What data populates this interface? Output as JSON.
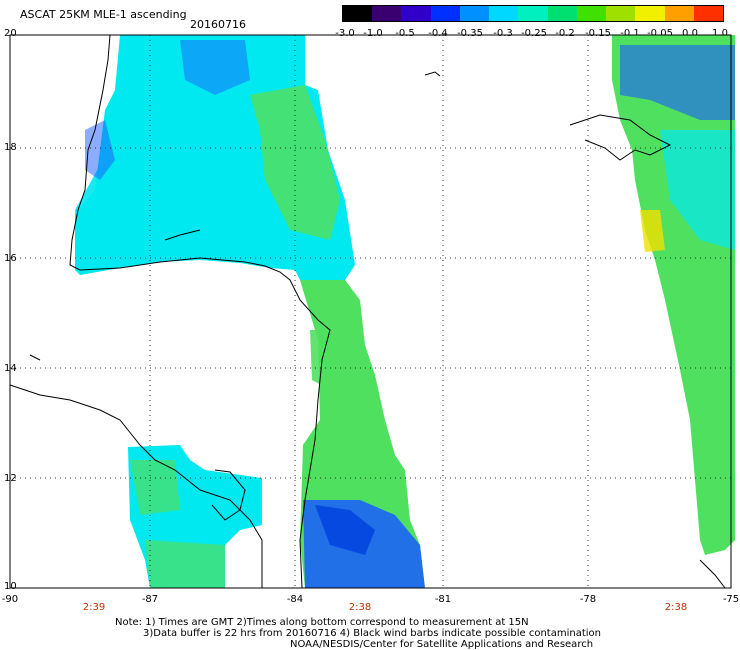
{
  "header": {
    "title": "ASCAT 25KM MLE-1 ascending",
    "date": "20160716"
  },
  "colorbar": {
    "labels": [
      "-3.0",
      "-1.0",
      "-0.5",
      "-0.4",
      "-0.35",
      "-0.3",
      "-0.25",
      "-0.2",
      "-0.15",
      "-0.1",
      "-0.05",
      "0.0",
      "1.0"
    ],
    "colors": [
      "#000000",
      "#3a0070",
      "#3000c8",
      "#0030ff",
      "#0090ff",
      "#00d8ff",
      "#00f0c0",
      "#00e070",
      "#40e000",
      "#a0e000",
      "#f0f000",
      "#ffa000",
      "#ff3000"
    ]
  },
  "axes": {
    "lat_labels": [
      "20",
      "18",
      "16",
      "14",
      "12",
      "10"
    ],
    "lon_labels": [
      "-90",
      "-87",
      "-84",
      "-81",
      "-78",
      "-75"
    ],
    "time_labels": [
      "2:39",
      "2:38",
      "2:38"
    ]
  },
  "notes": {
    "line1": "Note: 1) Times are GMT 2)Times along bottom correspond to measurement at 15N",
    "line2": "3)Data buffer is 22 hrs from 20160716 4) Black wind barbs indicate possible contamination",
    "line3": "NOAA/NESDIS/Center for Satellite Applications and Research"
  },
  "legend_colors": {
    "blue": "#1a5cff",
    "cyan": "#00e8f0",
    "green": "#50e060",
    "yellow": "#f0e000"
  }
}
